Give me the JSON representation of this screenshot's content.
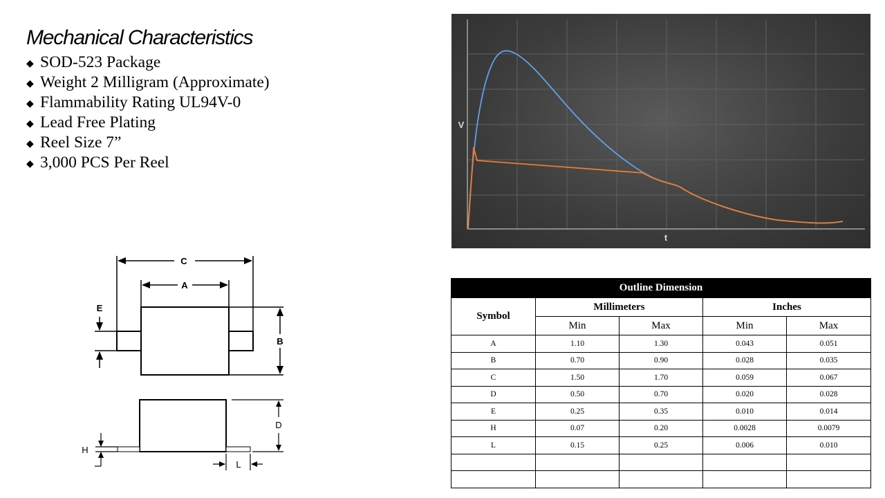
{
  "mechanical": {
    "title": "Mechanical Characteristics",
    "bullet_glyph": "◆",
    "items": [
      "SOD-523 Package",
      "Weight 2 Milligram (Approximate)",
      "Flammability Rating UL94V-0",
      "Lead Free Plating",
      "Reel Size 7”",
      "3,000 PCS Per Reel"
    ]
  },
  "chart": {
    "ylabel": "V",
    "xlabel": "t",
    "colors": {
      "pulse": "#5fa2e8",
      "clamp": "#ee7c2e",
      "grid": "#606060",
      "axis": "#bdbdbd",
      "label": "#d9d9d9"
    }
  },
  "drawing": {
    "labels": {
      "a": "A",
      "b": "B",
      "c": "C",
      "d": "D",
      "e": "E",
      "h": "H",
      "l": "L"
    }
  },
  "table": {
    "title": "Outline Dimension",
    "symbol_header": "Symbol",
    "group_headers": [
      "Millimeters",
      "Inches"
    ],
    "sub_headers": [
      "Min",
      "Max",
      "Min",
      "Max"
    ],
    "rows": [
      {
        "symbol": "A",
        "mm_min": "1.10",
        "mm_max": "1.30",
        "in_min": "0.043",
        "in_max": "0.051"
      },
      {
        "symbol": "B",
        "mm_min": "0.70",
        "mm_max": "0.90",
        "in_min": "0.028",
        "in_max": "0.035"
      },
      {
        "symbol": "C",
        "mm_min": "1.50",
        "mm_max": "1.70",
        "in_min": "0.059",
        "in_max": "0.067"
      },
      {
        "symbol": "D",
        "mm_min": "0.50",
        "mm_max": "0.70",
        "in_min": "0.020",
        "in_max": "0.028"
      },
      {
        "symbol": "E",
        "mm_min": "0.25",
        "mm_max": "0.35",
        "in_min": "0.010",
        "in_max": "0.014"
      },
      {
        "symbol": "H",
        "mm_min": "0.07",
        "mm_max": "0.20",
        "in_min": "0.0028",
        "in_max": "0.0079"
      },
      {
        "symbol": "L",
        "mm_min": "0.15",
        "mm_max": "0.25",
        "in_min": "0.006",
        "in_max": "0.010"
      }
    ],
    "blank_rows": 2
  }
}
